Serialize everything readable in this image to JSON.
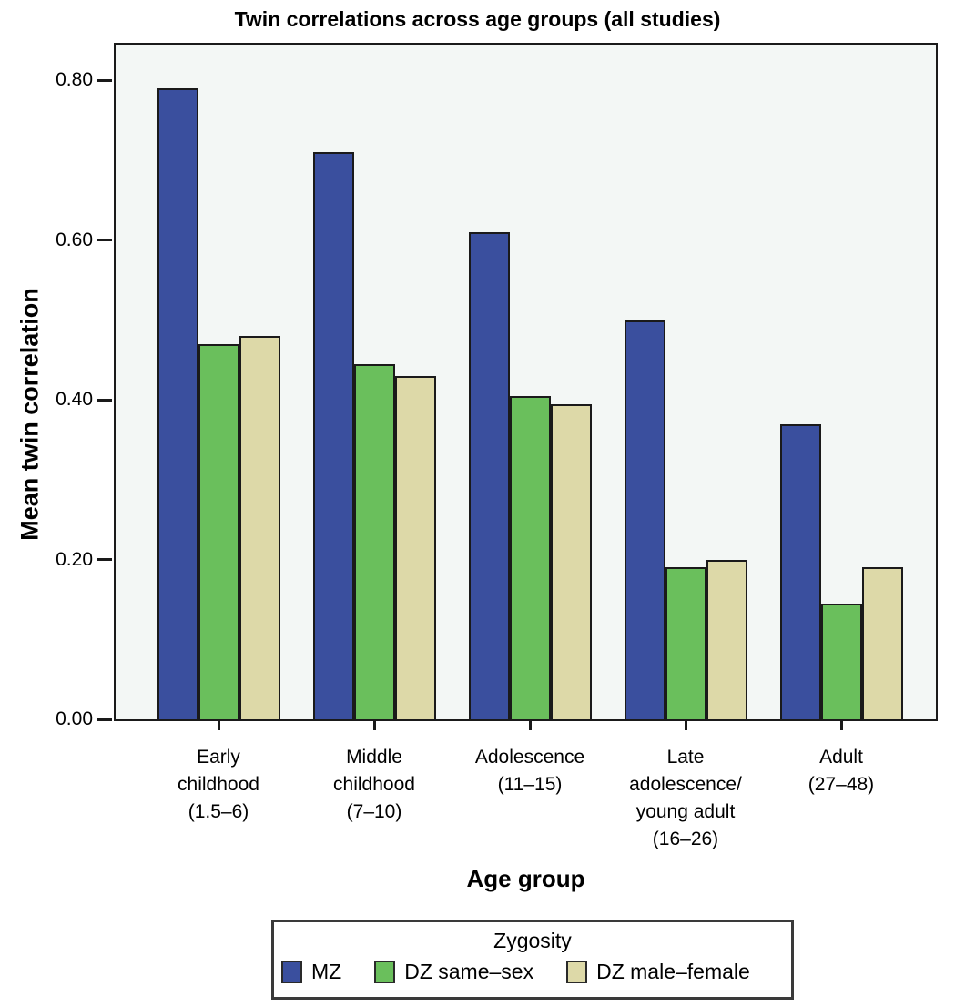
{
  "chart_data": {
    "type": "bar",
    "title": "Twin correlations across age groups (all studies)",
    "xlabel": "Age group",
    "ylabel": "Mean twin correlation",
    "ylim": [
      0,
      0.845
    ],
    "yticks": [
      0.0,
      0.2,
      0.4,
      0.6,
      0.8
    ],
    "ytick_labels": [
      "0.00",
      "0.20",
      "0.40",
      "0.60",
      "0.80"
    ],
    "grid": false,
    "legend_title": "Zygosity",
    "legend_position": "bottom",
    "categories": [
      {
        "label": "Early childhood (1.5–6)",
        "lines": [
          "Early",
          "childhood",
          "(1.5–6)"
        ]
      },
      {
        "label": "Middle childhood (7–10)",
        "lines": [
          "Middle",
          "childhood",
          "(7–10)"
        ]
      },
      {
        "label": "Adolescence (11–15)",
        "lines": [
          "Adolescence",
          "(11–15)"
        ]
      },
      {
        "label": "Late adolescence/young adult (16–26)",
        "lines": [
          "Late",
          "adolescence/",
          "young adult",
          "(16–26)"
        ]
      },
      {
        "label": "Adult (27–48)",
        "lines": [
          "Adult",
          "(27–48)"
        ]
      }
    ],
    "series": [
      {
        "name": "MZ",
        "color": "#3a4f9e",
        "values": [
          0.79,
          0.71,
          0.61,
          0.5,
          0.37
        ]
      },
      {
        "name": "DZ same–sex",
        "color": "#6abf5c",
        "values": [
          0.47,
          0.445,
          0.405,
          0.19,
          0.145
        ]
      },
      {
        "name": "DZ male–female",
        "color": "#ddd9a8",
        "values": [
          0.48,
          0.43,
          0.395,
          0.2,
          0.19
        ]
      }
    ]
  },
  "colors": {
    "plot_background": "#f3f7f5",
    "bar_outline": "#1a1a1a",
    "axis": "#1a1a1a",
    "legend_border": "#3a3a3a",
    "text": "#000000"
  }
}
